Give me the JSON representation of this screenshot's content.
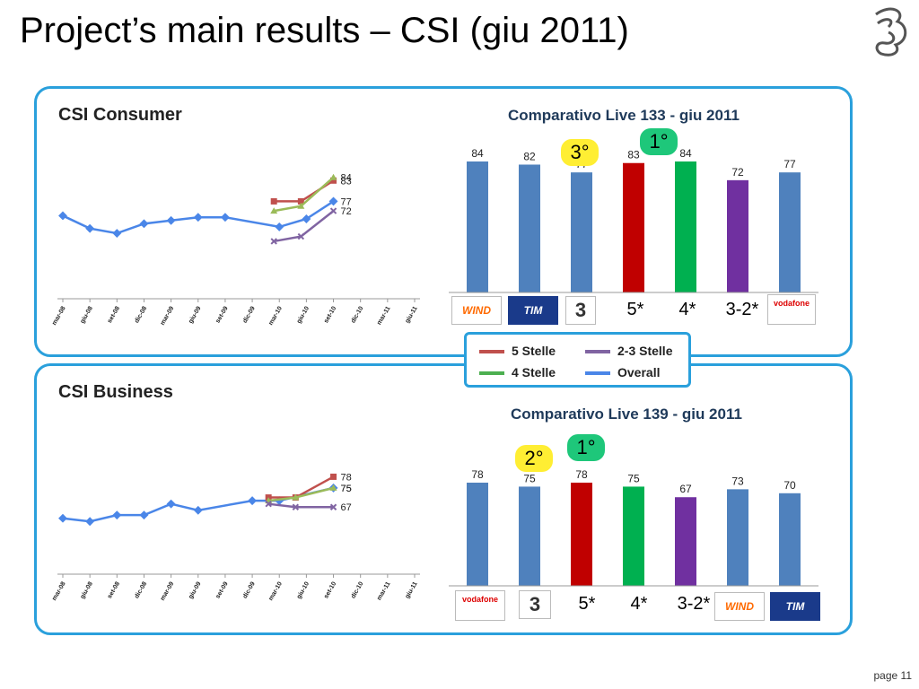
{
  "title": "Project’s main results – CSI (giu 2011)",
  "page_label": "page 11",
  "colors": {
    "blue": "#4a7cbf",
    "red": "#c00000",
    "green": "#00b050",
    "purple": "#7030a0",
    "panel_border": "#2aa0dc"
  },
  "legend": [
    {
      "label": "5 Stelle",
      "color": "#c0504d"
    },
    {
      "label": "2-3 Stelle",
      "color": "#8064a2"
    },
    {
      "label": "4 Stelle",
      "color": "#4caf50"
    },
    {
      "label": "Overall",
      "color": "#4a86e8"
    }
  ],
  "panels": {
    "consumer": {
      "title": "CSI Consumer",
      "bar_title": "Comparativo Live 133 - giu 2011",
      "badges": {
        "first": "1°",
        "third": "3°"
      },
      "brands": [
        "WIND",
        "TIM",
        "3",
        "5*",
        "4*",
        "3-2*",
        "vodafone"
      ]
    },
    "business": {
      "title": "CSI Business",
      "bar_title": "Comparativo Live 139 - giu 2011",
      "badges": {
        "first": "1°",
        "second": "2°"
      },
      "brands": [
        "vodafone",
        "3",
        "5*",
        "4*",
        "3-2*",
        "WIND",
        "TIM"
      ]
    }
  },
  "chart_data": [
    {
      "type": "line",
      "title": "CSI Consumer",
      "categories": [
        "mar-08",
        "giu-08",
        "set-08",
        "dic-08",
        "mar-09",
        "giu-09",
        "set-09",
        "dic-09",
        "mar-10",
        "giu-10",
        "set-10",
        "dic-10",
        "mar-11",
        "giu-11"
      ],
      "series": [
        {
          "name": "Overall",
          "color": "#4a86e8",
          "points": [
            [
              0,
              0.52
            ],
            [
              1,
              0.44
            ],
            [
              2,
              0.41
            ],
            [
              3,
              0.47
            ],
            [
              4,
              0.49
            ],
            [
              5,
              0.51
            ],
            [
              6,
              0.51
            ],
            [
              8,
              0.45
            ],
            [
              9,
              0.5
            ],
            [
              10,
              0.61
            ]
          ],
          "end_label": "77"
        },
        {
          "name": "5 Stelle",
          "color": "#c0504d",
          "points": [
            [
              7.8,
              0.61
            ],
            [
              8.8,
              0.61
            ],
            [
              10,
              0.74
            ]
          ],
          "end_label": "83"
        },
        {
          "name": "4 Stelle",
          "color": "#9bbb59",
          "points": [
            [
              7.8,
              0.55
            ],
            [
              8.8,
              0.58
            ],
            [
              10,
              0.76
            ]
          ],
          "end_label": "84"
        },
        {
          "name": "2-3 Stelle",
          "color": "#8064a2",
          "points": [
            [
              7.8,
              0.36
            ],
            [
              8.8,
              0.39
            ],
            [
              10,
              0.55
            ]
          ],
          "end_label": "72"
        }
      ]
    },
    {
      "type": "bar",
      "title": "Comparativo Live 133 - giu 2011",
      "categories": [
        "WIND",
        "TIM",
        "3",
        "5*",
        "4*",
        "3-2*",
        "vodafone"
      ],
      "values": [
        84,
        82,
        77,
        83,
        84,
        72,
        77
      ],
      "colors": [
        "#4f81bd",
        "#4f81bd",
        "#4f81bd",
        "#c00000",
        "#00b050",
        "#7030a0",
        "#4f81bd"
      ]
    },
    {
      "type": "line",
      "title": "CSI Business",
      "categories": [
        "mar-08",
        "giu-08",
        "set-08",
        "dic-08",
        "mar-09",
        "giu-09",
        "set-09",
        "dic-09",
        "mar-10",
        "giu-10",
        "set-10",
        "dic-10",
        "mar-11",
        "giu-11"
      ],
      "series": [
        {
          "name": "Overall",
          "color": "#4a86e8",
          "points": [
            [
              0,
              0.35
            ],
            [
              1,
              0.33
            ],
            [
              2,
              0.37
            ],
            [
              3,
              0.37
            ],
            [
              4,
              0.44
            ],
            [
              5,
              0.4
            ],
            [
              7,
              0.46
            ],
            [
              8,
              0.46
            ],
            [
              10,
              0.54
            ]
          ],
          "end_label": "75"
        },
        {
          "name": "5 Stelle",
          "color": "#c0504d",
          "points": [
            [
              7.6,
              0.48
            ],
            [
              8.6,
              0.48
            ],
            [
              10,
              0.61
            ]
          ],
          "end_label": "78"
        },
        {
          "name": "4 Stelle",
          "color": "#9bbb59",
          "points": [
            [
              7.6,
              0.46
            ],
            [
              8.6,
              0.48
            ],
            [
              10,
              0.54
            ]
          ],
          "end_label": "75"
        },
        {
          "name": "2-3 Stelle",
          "color": "#8064a2",
          "points": [
            [
              7.6,
              0.44
            ],
            [
              8.6,
              0.42
            ],
            [
              10,
              0.42
            ]
          ],
          "end_label": "67"
        }
      ]
    },
    {
      "type": "bar",
      "title": "Comparativo Live 139 - giu 2011",
      "categories": [
        "vodafone",
        "3",
        "5*",
        "4*",
        "3-2*",
        "WIND",
        "TIM"
      ],
      "values": [
        78,
        75,
        78,
        75,
        67,
        73,
        70
      ],
      "colors": [
        "#4f81bd",
        "#4f81bd",
        "#c00000",
        "#00b050",
        "#7030a0",
        "#4f81bd",
        "#4f81bd"
      ]
    }
  ]
}
